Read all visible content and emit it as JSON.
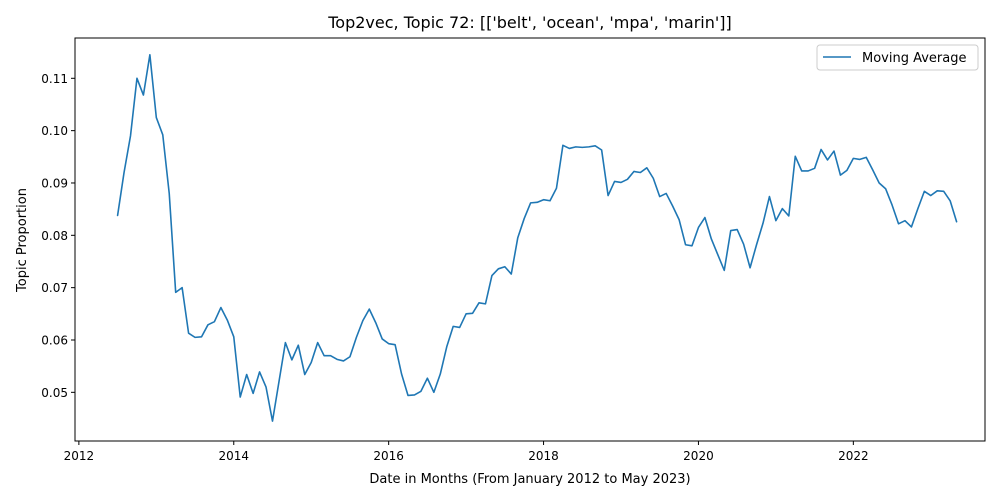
{
  "chart_data": {
    "type": "line",
    "title": "Top2vec, Topic 72: [['belt', 'ocean', 'mpa', 'marin']]",
    "xlabel": "Date in Months (From January 2012 to May 2023)",
    "ylabel": "Topic Proportion",
    "xlim": [
      2011.95,
      2023.7
    ],
    "ylim": [
      0.0407,
      0.1177
    ],
    "x_ticks": [
      2012,
      2014,
      2016,
      2018,
      2020,
      2022
    ],
    "x_tick_labels": [
      "2012",
      "2014",
      "2016",
      "2018",
      "2020",
      "2022"
    ],
    "y_ticks": [
      0.05,
      0.06,
      0.07,
      0.08,
      0.09,
      0.1,
      0.11
    ],
    "y_tick_labels": [
      "0.05",
      "0.06",
      "0.07",
      "0.08",
      "0.09",
      "0.10",
      "0.11"
    ],
    "grid": false,
    "legend_position": "top-right",
    "series": [
      {
        "name": "Moving Average",
        "color": "#1f77b4",
        "x": [
          "2012-07",
          "2012-08",
          "2012-09",
          "2012-10",
          "2012-11",
          "2012-12",
          "2013-01",
          "2013-02",
          "2013-03",
          "2013-04",
          "2013-05",
          "2013-06",
          "2013-07",
          "2013-08",
          "2013-09",
          "2013-10",
          "2013-11",
          "2013-12",
          "2014-01",
          "2014-02",
          "2014-03",
          "2014-04",
          "2014-05",
          "2014-06",
          "2014-07",
          "2014-08",
          "2014-09",
          "2014-10",
          "2014-11",
          "2014-12",
          "2015-01",
          "2015-02",
          "2015-03",
          "2015-04",
          "2015-05",
          "2015-06",
          "2015-07",
          "2015-08",
          "2015-09",
          "2015-10",
          "2015-11",
          "2015-12",
          "2016-01",
          "2016-02",
          "2016-03",
          "2016-04",
          "2016-05",
          "2016-06",
          "2016-07",
          "2016-08",
          "2016-09",
          "2016-10",
          "2016-11",
          "2016-12",
          "2017-01",
          "2017-02",
          "2017-03",
          "2017-04",
          "2017-05",
          "2017-06",
          "2017-07",
          "2017-08",
          "2017-09",
          "2017-10",
          "2017-11",
          "2017-12",
          "2018-01",
          "2018-02",
          "2018-03",
          "2018-04",
          "2018-05",
          "2018-06",
          "2018-07",
          "2018-08",
          "2018-09",
          "2018-10",
          "2018-11",
          "2018-12",
          "2019-01",
          "2019-02",
          "2019-03",
          "2019-04",
          "2019-05",
          "2019-06",
          "2019-07",
          "2019-08",
          "2019-09",
          "2019-10",
          "2019-11",
          "2019-12",
          "2020-01",
          "2020-02",
          "2020-03",
          "2020-04",
          "2020-05",
          "2020-06",
          "2020-07",
          "2020-08",
          "2020-09",
          "2020-10",
          "2020-11",
          "2020-12",
          "2021-01",
          "2021-02",
          "2021-03",
          "2021-04",
          "2021-05",
          "2021-06",
          "2021-07",
          "2021-08",
          "2021-09",
          "2021-10",
          "2021-11",
          "2021-12",
          "2022-01",
          "2022-02",
          "2022-03",
          "2022-04",
          "2022-05",
          "2022-06",
          "2022-07",
          "2022-08",
          "2022-09",
          "2022-10",
          "2022-11",
          "2022-12",
          "2023-01",
          "2023-02",
          "2023-03",
          "2023-04",
          "2023-05"
        ],
        "y": [
          0.0838,
          0.092,
          0.099,
          0.11,
          0.1068,
          0.1145,
          0.1025,
          0.0992,
          0.088,
          0.0691,
          0.07,
          0.0613,
          0.0605,
          0.0606,
          0.0629,
          0.0635,
          0.0662,
          0.0638,
          0.0606,
          0.0491,
          0.0534,
          0.0498,
          0.0539,
          0.051,
          0.0445,
          0.052,
          0.0595,
          0.0562,
          0.059,
          0.0534,
          0.0557,
          0.0595,
          0.057,
          0.057,
          0.0563,
          0.056,
          0.0568,
          0.0605,
          0.0637,
          0.0659,
          0.0633,
          0.0602,
          0.0593,
          0.0591,
          0.0535,
          0.0494,
          0.0495,
          0.0502,
          0.0527,
          0.05,
          0.0535,
          0.0587,
          0.0626,
          0.0624,
          0.065,
          0.0651,
          0.0671,
          0.0669,
          0.0723,
          0.0736,
          0.074,
          0.0726,
          0.0795,
          0.0832,
          0.0862,
          0.0863,
          0.0868,
          0.0866,
          0.089,
          0.0972,
          0.0966,
          0.0969,
          0.0968,
          0.0969,
          0.0971,
          0.0963,
          0.0876,
          0.0903,
          0.0901,
          0.0907,
          0.0922,
          0.092,
          0.0929,
          0.0909,
          0.0874,
          0.088,
          0.0856,
          0.083,
          0.0782,
          0.078,
          0.0815,
          0.0834,
          0.0793,
          0.0763,
          0.0733,
          0.0809,
          0.0811,
          0.0783,
          0.0738,
          0.0782,
          0.0823,
          0.0874,
          0.0828,
          0.0851,
          0.0837,
          0.0951,
          0.0923,
          0.0923,
          0.0928,
          0.0964,
          0.0944,
          0.0961,
          0.0915,
          0.0924,
          0.0947,
          0.0945,
          0.0949,
          0.0925,
          0.09,
          0.0889,
          0.0858,
          0.0822,
          0.0828,
          0.0816,
          0.0851,
          0.0884,
          0.0876,
          0.0885,
          0.0884,
          0.0866,
          0.0826
        ]
      }
    ]
  }
}
